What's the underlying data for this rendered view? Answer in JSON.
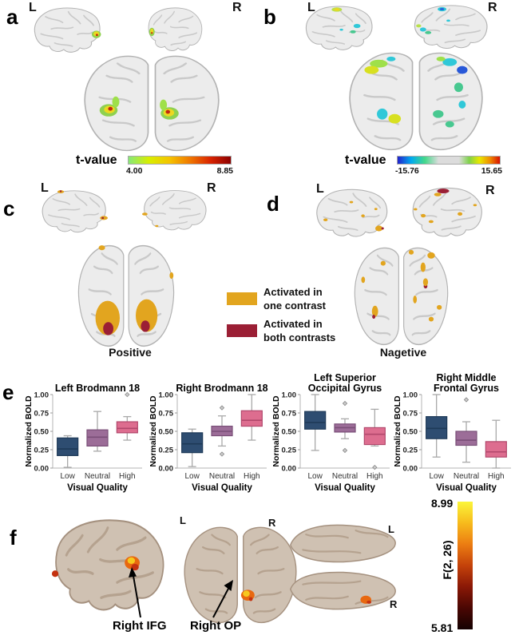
{
  "panels": {
    "a": {
      "label": "a",
      "left_marker": "L",
      "right_marker": "R",
      "colorbar": {
        "label": "t-value",
        "min": "4.00",
        "max": "8.85"
      }
    },
    "b": {
      "label": "b",
      "left_marker": "L",
      "right_marker": "R",
      "colorbar": {
        "label": "t-value",
        "min": "-15.76",
        "max": "15.65"
      }
    },
    "c": {
      "label": "c",
      "left_marker": "L",
      "right_marker": "R",
      "caption": "Positive"
    },
    "d": {
      "label": "d",
      "left_marker": "L",
      "right_marker": "R",
      "caption": "Nagetive"
    },
    "e": {
      "label": "e"
    },
    "f": {
      "label": "f",
      "posterior_left_marker": "L",
      "posterior_right_marker": "R",
      "axial_left_marker": "L",
      "axial_right_marker": "R",
      "annotations": [
        {
          "text": "Right IFG"
        },
        {
          "text": "Right OP"
        }
      ],
      "colorbar": {
        "label": "F(2, 26)",
        "min": "5.81",
        "max": "8.99"
      }
    }
  },
  "legend": {
    "items": [
      {
        "label": "Activated in\none contrast",
        "color": "#E2A51F"
      },
      {
        "label": "Activated in\nboth contrasts",
        "color": "#9B1F35"
      }
    ]
  },
  "chart_data": [
    {
      "type": "box",
      "title": "Left Brodmann 18",
      "xlabel": "Visual Quality",
      "ylabel": "Normalized BOLD",
      "categories": [
        "Low",
        "Neutral",
        "High"
      ],
      "yticks": [
        0,
        0.25,
        0.5,
        0.75,
        1
      ],
      "ylim": [
        0,
        1
      ],
      "boxes": [
        {
          "whislo": 0.01,
          "q1": 0.17,
          "med": 0.26,
          "q3": 0.41,
          "whishi": 0.44,
          "outliers": []
        },
        {
          "whislo": 0.23,
          "q1": 0.3,
          "med": 0.42,
          "q3": 0.52,
          "whishi": 0.77,
          "outliers": []
        },
        {
          "whislo": 0.38,
          "q1": 0.48,
          "med": 0.54,
          "q3": 0.63,
          "whishi": 0.7,
          "outliers": [
            1.0
          ]
        }
      ]
    },
    {
      "type": "box",
      "title": "Right Brodmann 18",
      "xlabel": "Visual Quality",
      "ylabel": "Normalized BOLD",
      "categories": [
        "Low",
        "Neutral",
        "High"
      ],
      "yticks": [
        0,
        0.25,
        0.5,
        0.75,
        1
      ],
      "ylim": [
        0,
        1
      ],
      "boxes": [
        {
          "whislo": 0.02,
          "q1": 0.21,
          "med": 0.33,
          "q3": 0.48,
          "whishi": 0.53,
          "outliers": []
        },
        {
          "whislo": 0.3,
          "q1": 0.44,
          "med": 0.5,
          "q3": 0.57,
          "whishi": 0.71,
          "outliers": [
            0.82,
            0.19
          ]
        },
        {
          "whislo": 0.38,
          "q1": 0.57,
          "med": 0.65,
          "q3": 0.78,
          "whishi": 1.0,
          "outliers": []
        }
      ]
    },
    {
      "type": "box",
      "title": "Left Superior\nOccipital Gyrus",
      "xlabel": "Visual Quality",
      "ylabel": "Normalized BOLD",
      "categories": [
        "Low",
        "Neutral",
        "High"
      ],
      "yticks": [
        0,
        0.25,
        0.5,
        0.75,
        1
      ],
      "ylim": [
        0,
        1
      ],
      "boxes": [
        {
          "whislo": 0.24,
          "q1": 0.53,
          "med": 0.62,
          "q3": 0.77,
          "whishi": 1.0,
          "outliers": []
        },
        {
          "whislo": 0.4,
          "q1": 0.49,
          "med": 0.55,
          "q3": 0.6,
          "whishi": 0.67,
          "outliers": [
            0.88,
            0.24
          ]
        },
        {
          "whislo": 0.3,
          "q1": 0.32,
          "med": 0.46,
          "q3": 0.55,
          "whishi": 0.8,
          "outliers": [
            0.01
          ]
        }
      ]
    },
    {
      "type": "box",
      "title": "Right Middle\nFrontal Gyrus",
      "xlabel": "Visual Quality",
      "ylabel": "Normalized BOLD",
      "categories": [
        "Low",
        "Neutral",
        "High"
      ],
      "yticks": [
        0,
        0.25,
        0.5,
        0.75,
        1
      ],
      "ylim": [
        0,
        1
      ],
      "boxes": [
        {
          "whislo": 0.15,
          "q1": 0.4,
          "med": 0.54,
          "q3": 0.7,
          "whishi": 1.0,
          "outliers": []
        },
        {
          "whislo": 0.08,
          "q1": 0.31,
          "med": 0.38,
          "q3": 0.5,
          "whishi": 0.63,
          "outliers": [
            0.93
          ]
        },
        {
          "whislo": 0.0,
          "q1": 0.15,
          "med": 0.22,
          "q3": 0.36,
          "whishi": 0.65,
          "outliers": []
        }
      ]
    }
  ],
  "style": {
    "box_fills": [
      "#2E4D71",
      "#9C6D98",
      "#DD6D8F"
    ],
    "box_strokes": [
      "#1E3A58",
      "#7A4F78",
      "#B2486C"
    ],
    "whisker_color": "#A9A9A9",
    "activation_one": "#E2A51F",
    "activation_both": "#9B1F35"
  }
}
